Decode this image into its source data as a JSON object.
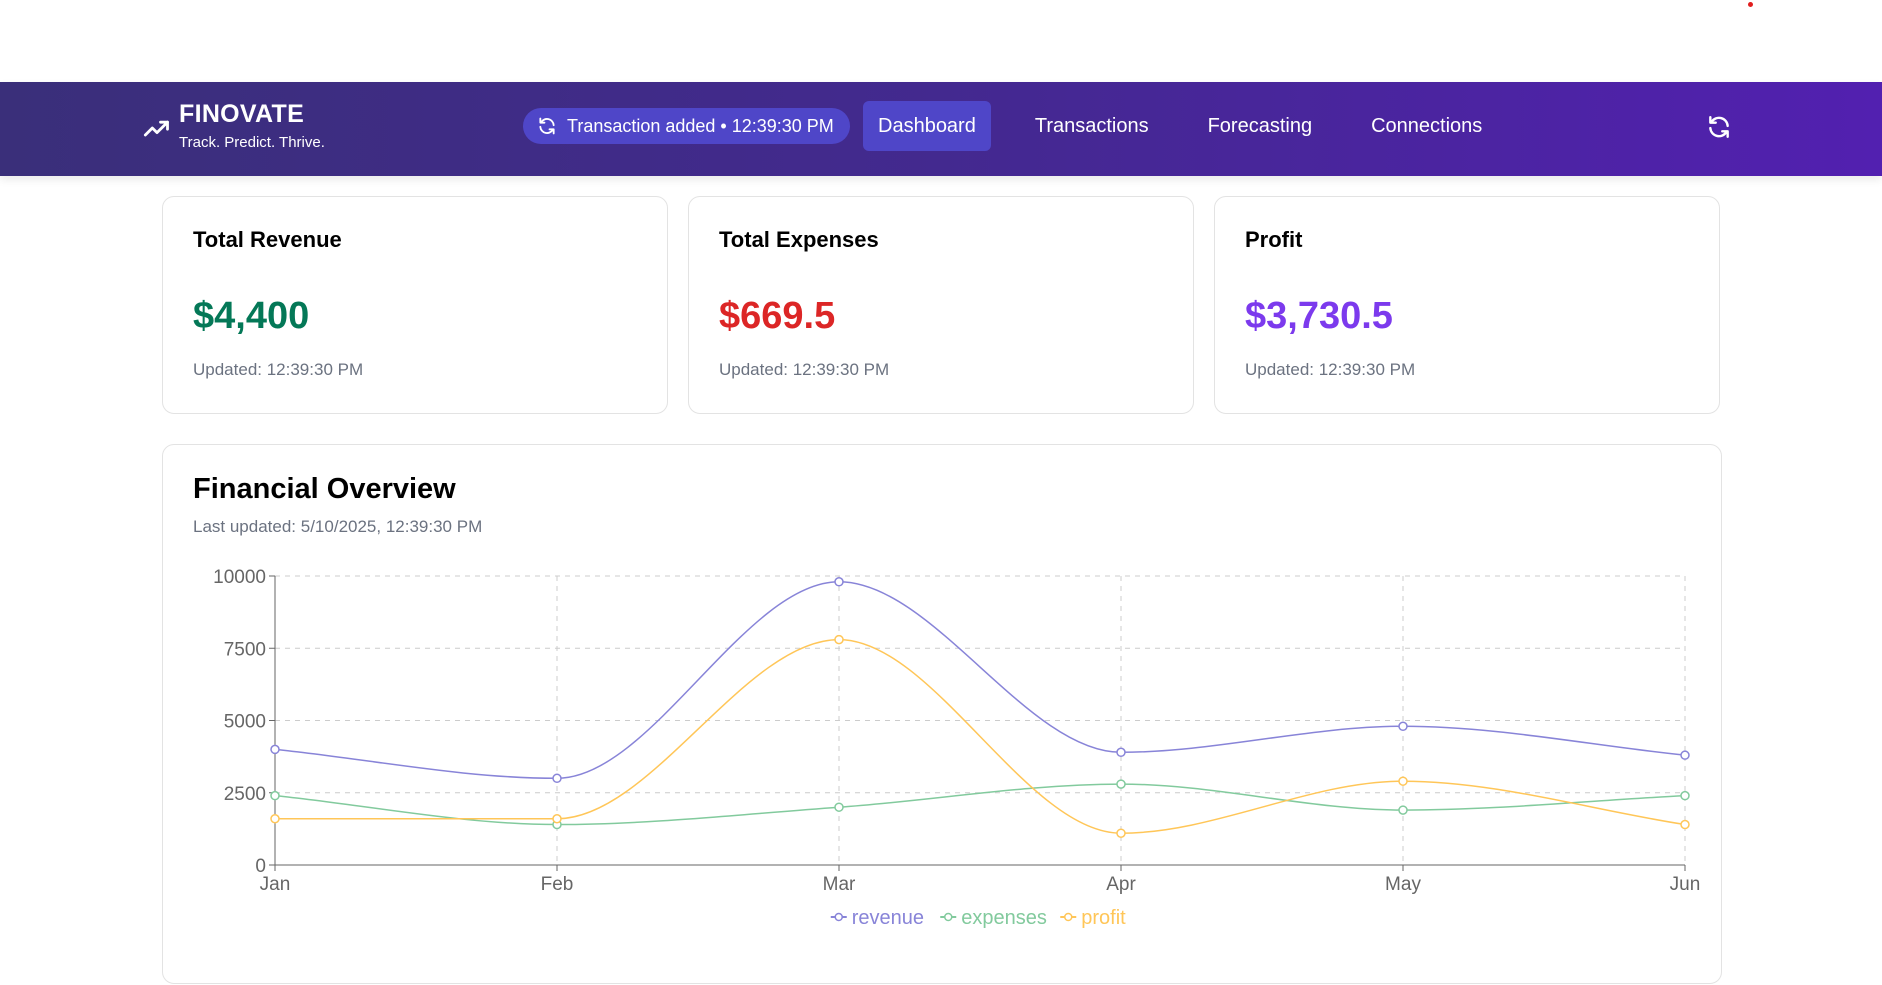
{
  "header": {
    "brand_title": "FINOVATE",
    "brand_tagline": "Track. Predict. Thrive.",
    "brand_icon": "trending-up-icon",
    "notification": "Transaction added • 12:39:30 PM",
    "nav": [
      {
        "label": "Dashboard",
        "active": true
      },
      {
        "label": "Transactions",
        "active": false
      },
      {
        "label": "Forecasting",
        "active": false
      },
      {
        "label": "Connections",
        "active": false
      }
    ],
    "refresh_icon": "refresh-icon"
  },
  "cards": [
    {
      "title": "Total Revenue",
      "value": "$4,400",
      "updated": "Updated: 12:39:30 PM",
      "color": "#047857"
    },
    {
      "title": "Total Expenses",
      "value": "$669.5",
      "updated": "Updated: 12:39:30 PM",
      "color": "#dc2626"
    },
    {
      "title": "Profit",
      "value": "$3,730.5",
      "updated": "Updated: 12:39:30 PM",
      "color": "#7c3aed"
    }
  ],
  "overview": {
    "title": "Financial Overview",
    "subtitle": "Last updated: 5/10/2025, 12:39:30 PM"
  },
  "chart_data": {
    "type": "line",
    "title": "Financial Overview",
    "categories": [
      "Jan",
      "Feb",
      "Mar",
      "Apr",
      "May",
      "Jun"
    ],
    "series": [
      {
        "name": "revenue",
        "color": "#8884d8",
        "values": [
          4000,
          3000,
          9800,
          3900,
          4800,
          3800
        ]
      },
      {
        "name": "expenses",
        "color": "#82ca9d",
        "values": [
          2400,
          1400,
          2000,
          2800,
          1900,
          2400
        ]
      },
      {
        "name": "profit",
        "color": "#ffc658",
        "values": [
          1600,
          1600,
          7800,
          1100,
          2900,
          1400
        ]
      }
    ],
    "yticks": [
      0,
      2500,
      5000,
      7500,
      10000
    ],
    "ylim": [
      0,
      10000
    ],
    "grid": true,
    "curve": "monotone",
    "legend": "bottom-center",
    "xlabel": "",
    "ylabel": ""
  }
}
